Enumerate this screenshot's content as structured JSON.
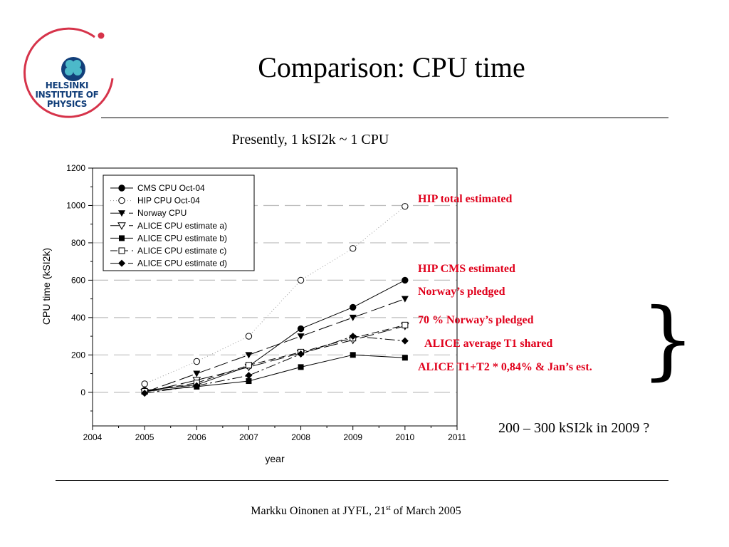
{
  "slide": {
    "title": "Comparison: CPU time",
    "subtitle": "Presently, 1 kSI2k ~ 1 CPU",
    "logo": {
      "line1": "HELSINKI",
      "line2": "INSTITUTE OF",
      "line3": "PHYSICS",
      "icon": "clover-icon"
    },
    "note": "200 – 300 kSI2k in 2009 ?",
    "footer": {
      "before": "Markku Oinonen at JYFL, 21",
      "sup": "st",
      "after": " of March 2005"
    },
    "brace": "}",
    "colors": {
      "annotation": "#e0001b",
      "logo": "#123f7a",
      "logo_ring": "#d6334a"
    }
  },
  "annotations": [
    "HIP total estimated",
    "HIP CMS estimated",
    "Norway’s pledged",
    "70 % Norway’s pledged",
    "ALICE average T1 shared",
    "ALICE T1+T2 * 0,84% & Jan’s est."
  ],
  "chart_data": {
    "type": "line",
    "xlabel": "year",
    "ylabel": "CPU time (kSI2k)",
    "xlim": [
      2004,
      2011
    ],
    "ylim": [
      -180,
      1200
    ],
    "xticks": [
      2004,
      2005,
      2006,
      2007,
      2008,
      2009,
      2010,
      2011
    ],
    "yticks": [
      0,
      200,
      400,
      600,
      800,
      1000,
      1200
    ],
    "grid": "horizontal dashed",
    "legend_position": "top-left",
    "series": [
      {
        "name": "CMS CPU Oct-04",
        "marker": "circle-filled",
        "line": "solid",
        "x": [
          2005,
          2006,
          2007,
          2008,
          2009,
          2010
        ],
        "y": [
          10,
          40,
          140,
          340,
          455,
          600
        ]
      },
      {
        "name": "HIP CPU Oct-04",
        "marker": "circle-open",
        "line": "dotted",
        "x": [
          2005,
          2006,
          2007,
          2008,
          2009,
          2010
        ],
        "y": [
          45,
          165,
          300,
          600,
          770,
          995
        ]
      },
      {
        "name": "Norway CPU",
        "marker": "triangle-down-filled",
        "line": "long-dash",
        "x": [
          2005,
          2006,
          2007,
          2008,
          2009,
          2010
        ],
        "y": [
          0,
          100,
          200,
          300,
          400,
          500
        ]
      },
      {
        "name": "ALICE CPU estimate a)",
        "marker": "triangle-down-open",
        "line": "long-dash",
        "x": [
          2005,
          2006,
          2007,
          2008,
          2009,
          2010
        ],
        "y": [
          0,
          65,
          135,
          210,
          280,
          355
        ]
      },
      {
        "name": "ALICE CPU estimate b)",
        "marker": "square-filled",
        "line": "solid",
        "x": [
          2005,
          2006,
          2007,
          2008,
          2009,
          2010
        ],
        "y": [
          5,
          30,
          60,
          135,
          200,
          185
        ]
      },
      {
        "name": "ALICE CPU estimate c)",
        "marker": "square-open",
        "line": "dash",
        "x": [
          2005,
          2006,
          2007,
          2008,
          2009,
          2010
        ],
        "y": [
          5,
          50,
          145,
          215,
          290,
          360
        ]
      },
      {
        "name": "ALICE CPU estimate d)",
        "marker": "diamond-filled",
        "line": "dash-dot",
        "x": [
          2005,
          2006,
          2007,
          2008,
          2009,
          2010
        ],
        "y": [
          -5,
          35,
          90,
          205,
          300,
          275
        ]
      }
    ]
  }
}
